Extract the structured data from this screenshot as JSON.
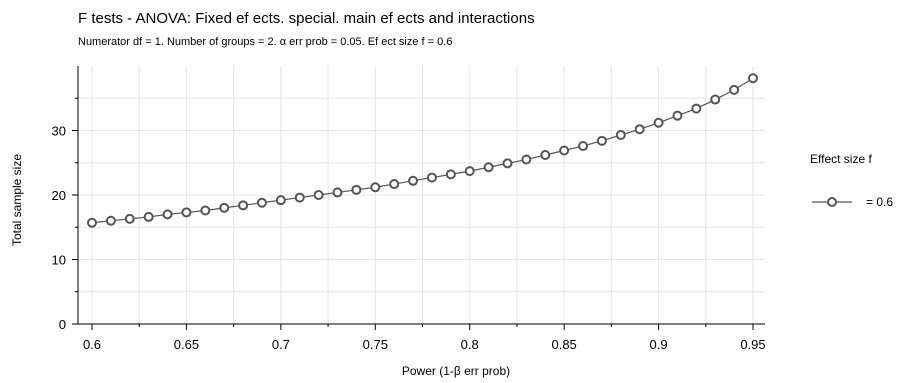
{
  "chart_data": {
    "type": "line",
    "title": "F tests - ANOVA: Fixed ef ects. special. main ef ects and interactions",
    "subtitle": "Numerator df = 1. Number of groups = 2. α err prob = 0.05. Ef ect size f = 0.6",
    "xlabel": "Power (1-β err prob)",
    "ylabel": "Total sample size",
    "xlim": [
      0.6,
      0.95
    ],
    "ylim": [
      0,
      40
    ],
    "x_ticks": [
      "0.6",
      "0.65",
      "0.7",
      "0.75",
      "0.8",
      "0.85",
      "0.9",
      "0.95"
    ],
    "y_ticks": [
      "0",
      "10",
      "20",
      "30"
    ],
    "grid": true,
    "legend": {
      "title": "Effect size f",
      "position": "right",
      "entries": [
        "= 0.6"
      ]
    },
    "series": [
      {
        "name": "= 0.6",
        "color": "#555555",
        "x": [
          0.6,
          0.61,
          0.62,
          0.63,
          0.64,
          0.65,
          0.66,
          0.67,
          0.68,
          0.69,
          0.7,
          0.71,
          0.72,
          0.73,
          0.74,
          0.75,
          0.76,
          0.77,
          0.78,
          0.79,
          0.8,
          0.81,
          0.82,
          0.83,
          0.84,
          0.85,
          0.86,
          0.87,
          0.88,
          0.89,
          0.9,
          0.91,
          0.92,
          0.93,
          0.94,
          0.95
        ],
        "y": [
          15.7,
          16.0,
          16.3,
          16.6,
          17.0,
          17.3,
          17.6,
          18.0,
          18.4,
          18.8,
          19.2,
          19.6,
          20.0,
          20.4,
          20.8,
          21.2,
          21.7,
          22.2,
          22.7,
          23.2,
          23.7,
          24.3,
          24.9,
          25.5,
          26.2,
          26.9,
          27.6,
          28.4,
          29.3,
          30.2,
          31.2,
          32.3,
          33.4,
          34.8,
          36.3,
          38.1
        ]
      }
    ]
  }
}
